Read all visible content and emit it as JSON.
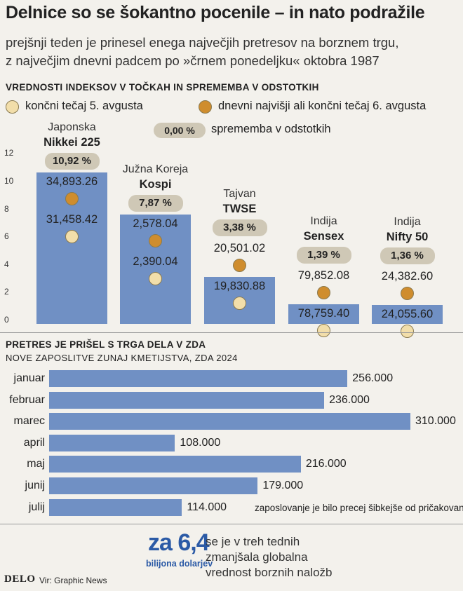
{
  "title": "Delnice so se šokantno pocenile – in nato podražile",
  "subtitle_line1": "prejšnji teden je prinesel enega največjih pretresov na borznem trgu,",
  "subtitle_line2": "z največjim dnevni padcem po »črnem ponedeljku« oktobra 1987",
  "section1_title": "VREDNOSTI INDEKSOV V TOČKAH IN SPREMEMBA V ODSTOTKIH",
  "legend": {
    "light_label": "končni tečaj 5. avgusta",
    "dark_label": "dnevni najvišji ali končni tečaj 6. avgusta",
    "pill_label": "0,00 %",
    "pill_desc": "sprememba v odstotkih",
    "light_color": "#f2deaa",
    "dark_color": "#cf8d2e"
  },
  "chart_data": [
    {
      "type": "bar",
      "title": "VREDNOSTI INDEKSOV V TOČKAH IN SPREMEMBA V ODSTOTKIH",
      "yticks": [
        "0",
        "2",
        "4",
        "6",
        "8",
        "10",
        "12"
      ],
      "ylim": [
        0,
        12
      ],
      "grid": false,
      "categories": [
        {
          "country": "Japonska",
          "index": "Nikkei 225",
          "change": "10,92 %",
          "change_value": 10.92,
          "close_aug5": "31,458.42",
          "high_aug6": "34,893.26"
        },
        {
          "country": "Južna Koreja",
          "index": "Kospi",
          "change": "7,87 %",
          "change_value": 7.87,
          "close_aug5": "2,390.04",
          "high_aug6": "2,578.04"
        },
        {
          "country": "Tajvan",
          "index": "TWSE",
          "change": "3,38 %",
          "change_value": 3.38,
          "close_aug5": "19,830.88",
          "high_aug6": "20,501.02"
        },
        {
          "country": "Indija",
          "index": "Sensex",
          "change": "1,39 %",
          "change_value": 1.39,
          "close_aug5": "78,759.40",
          "high_aug6": "79,852.08"
        },
        {
          "country": "Indija",
          "index": "Nifty 50",
          "change": "1,36 %",
          "change_value": 1.36,
          "close_aug5": "24,055.60",
          "high_aug6": "24,382.60"
        }
      ]
    },
    {
      "type": "bar",
      "orientation": "horizontal",
      "title": "PRETRES JE PRIŠEL S TRGA DELA V ZDA",
      "subtitle": "NOVE ZAPOSLITVE ZUNAJ KMETIJSTVA, ZDA 2024",
      "categories": [
        "januar",
        "februar",
        "marec",
        "april",
        "maj",
        "junij",
        "julij"
      ],
      "values": [
        256000,
        236000,
        310000,
        108000,
        216000,
        179000,
        114000
      ],
      "value_labels": [
        "256.000",
        "236.000",
        "310.000",
        "108.000",
        "216.000",
        "179.000",
        "114.000"
      ]
    }
  ],
  "section2_title": "PRETRES JE PRIŠEL S TRGA DELA V ZDA",
  "section2_sub": "NOVE ZAPOSLITVE ZUNAJ KMETIJSTVA, ZDA 2024",
  "july_note": "zaposlovanje je bilo precej šibkejše od pričakovanj",
  "footer": {
    "big_number": "za 6,4",
    "unit": "bilijona dolarjev",
    "text_line1": "se je v treh tednih",
    "text_line2": "zmanjšala globalna",
    "text_line3": "vrednost borznih naložb",
    "logo": "DELO",
    "source": "Vir: Graphic News",
    "accent": "#2b5aa6"
  }
}
